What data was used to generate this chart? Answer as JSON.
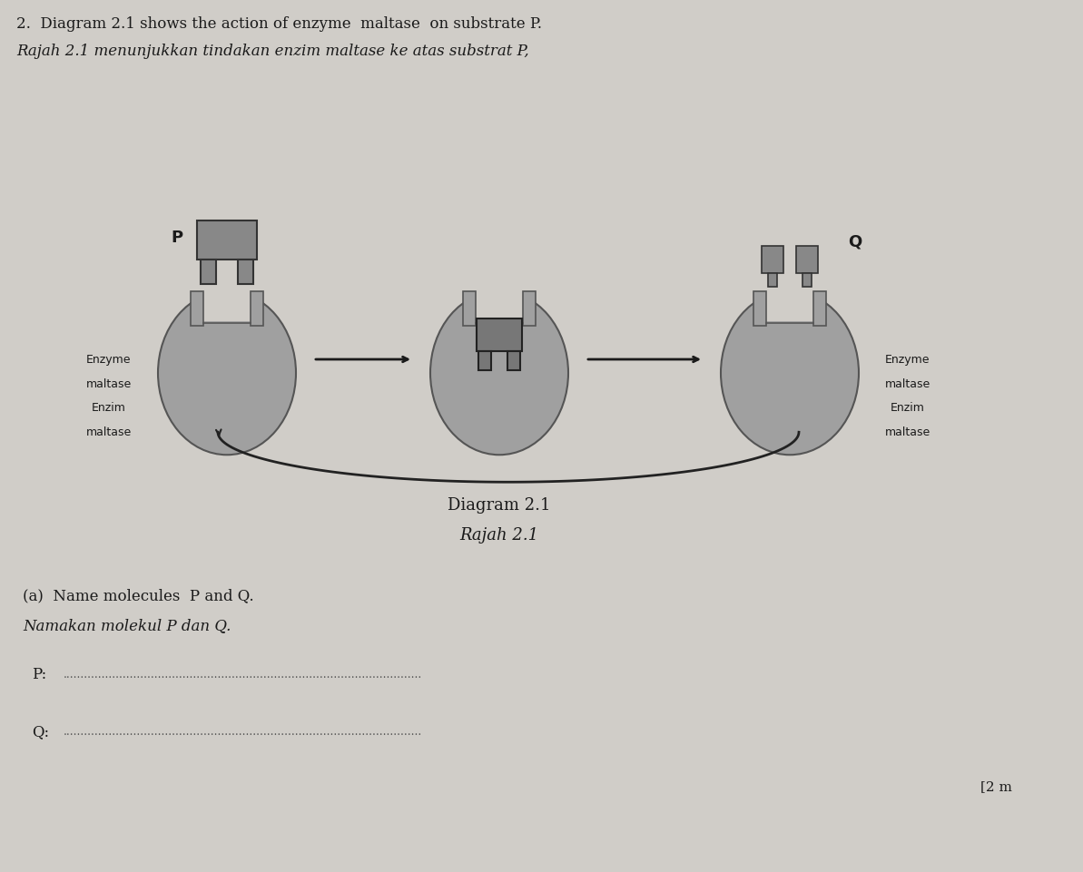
{
  "bg_color": "#d9d9d9",
  "enzyme_color": "#a0a0a0",
  "substrate_color": "#888888",
  "title_line1": "Diagram 2.1",
  "title_line2": "Rajah 2.1",
  "header_line1": "2.  Diagram 2.1 shows the action of enzyme  maltase  on substrate P.",
  "header_line2": "Rajah 2.1 menunjukkan tindakan enzim maltase ke atas substrat P,",
  "label_P": "P",
  "label_Q": "Q",
  "enzyme_label_left_1": "Enzyme",
  "enzyme_label_left_2": "maltase",
  "enzyme_label_left_3": "Enzim",
  "enzyme_label_left_4": "maltase",
  "enzyme_label_right_1": "Enzyme",
  "enzyme_label_right_2": "maltase",
  "enzyme_label_right_3": "Enzim",
  "enzyme_label_right_4": "maltase",
  "question_a_line1": "(a)  Name molecules  P and Q.",
  "question_a_line2": "Namakan molekul P dan Q.",
  "p_label": "P:",
  "q_label": "Q:",
  "dots": "......................................................................................................",
  "mark": "[2 m",
  "text_color": "#1a1a1a",
  "arrow_color": "#1a1a1a"
}
